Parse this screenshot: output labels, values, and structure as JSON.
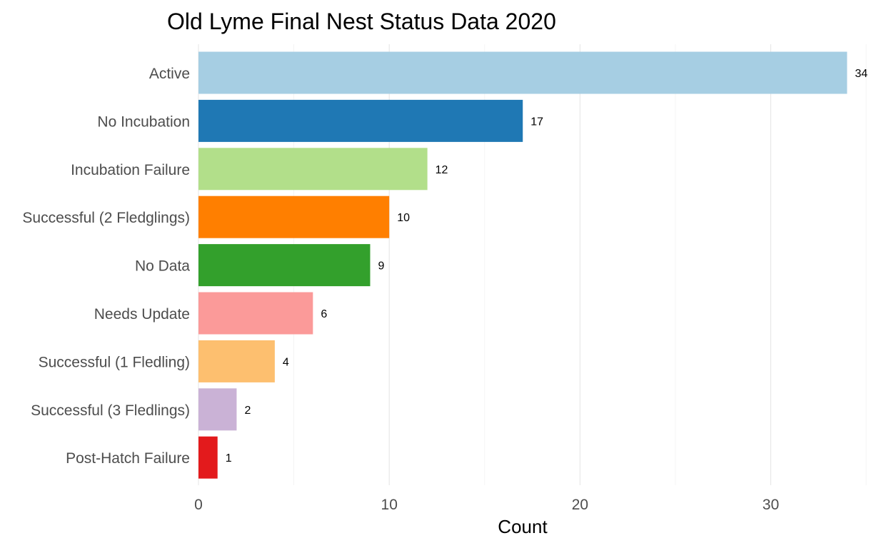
{
  "chart_data": {
    "type": "bar",
    "orientation": "horizontal",
    "title": "Old Lyme Final Nest Status Data 2020",
    "xlabel": "Count",
    "ylabel": "",
    "categories": [
      "Active",
      "No Incubation",
      "Incubation Failure",
      "Successful (2 Fledglings)",
      "No Data",
      "Needs Update",
      "Successful (1 Fledling)",
      "Successful (3 Fledlings)",
      "Post-Hatch Failure"
    ],
    "values": [
      34,
      17,
      12,
      10,
      9,
      6,
      4,
      2,
      1
    ],
    "value_labels": [
      "34",
      "17",
      "12",
      "10",
      "9",
      "6",
      "4",
      "2",
      "1"
    ],
    "colors": [
      "#a6cee3",
      "#1f78b4",
      "#b2df8a",
      "#ff7f00",
      "#33a02c",
      "#fb9a99",
      "#fdbf6f",
      "#cab2d6",
      "#e31a1c"
    ],
    "xlim": [
      0,
      35
    ],
    "x_ticks": [
      0,
      10,
      20,
      30
    ],
    "x_tick_labels": [
      "0",
      "10",
      "20",
      "30"
    ],
    "grid": true,
    "legend": "none"
  }
}
